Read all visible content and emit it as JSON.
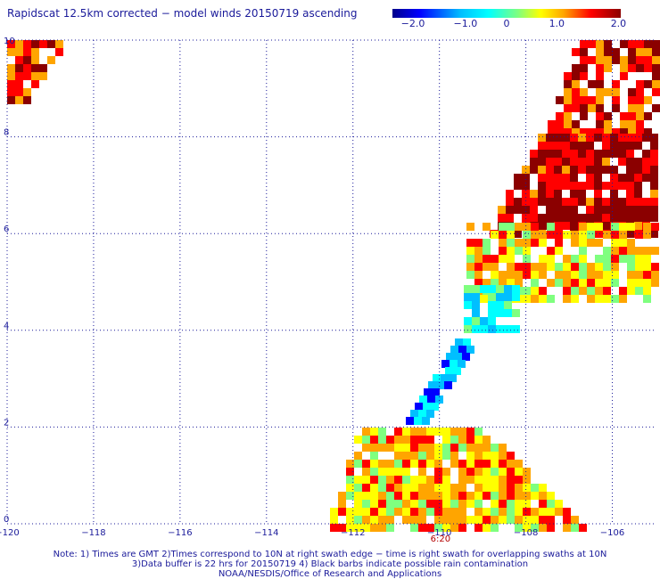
{
  "title": "Rapidscat 12.5km corrected − model winds 20150719 ascending",
  "colorbar": {
    "labels": [
      "−2.0",
      "−1.0",
      "0",
      "1.0",
      "2.0"
    ],
    "values": [
      -2.0,
      -1.0,
      0,
      1.0,
      2.0
    ],
    "range": [
      -2.0,
      2.0
    ],
    "colors": [
      "#00008b",
      "#0000ff",
      "#00bfff",
      "#00ffff",
      "#7fff7f",
      "#ffff00",
      "#ffa500",
      "#ff0000",
      "#8b0000"
    ]
  },
  "map": {
    "lon_range": [
      -120,
      -105
    ],
    "lat_range": [
      0,
      10
    ],
    "lon_ticks": [
      -120,
      -118,
      -116,
      -114,
      -112,
      -110,
      -108,
      -106
    ],
    "lat_ticks": [
      0,
      2,
      4,
      6,
      8,
      10
    ],
    "lon_tick_labels": [
      "−120",
      "−118",
      "−116",
      "−114",
      "−112",
      "−110",
      "−108",
      "−106"
    ],
    "lat_tick_labels": [
      "0",
      "2",
      "4",
      "6",
      "8",
      "10"
    ],
    "grid": "dotted",
    "swath_time": "6:20",
    "swath_time_lon": -110
  },
  "notes": [
    "Note: 1) Times are GMT 2)Times correspond to 10N at right swath edge − time is right swath for overlapping swaths at 10N",
    "3)Data buffer is 22 hrs for 20150719 4) Black barbs indicate possible rain contamination",
    "NOAA/NESDIS/Office of Research and Applications"
  ]
}
